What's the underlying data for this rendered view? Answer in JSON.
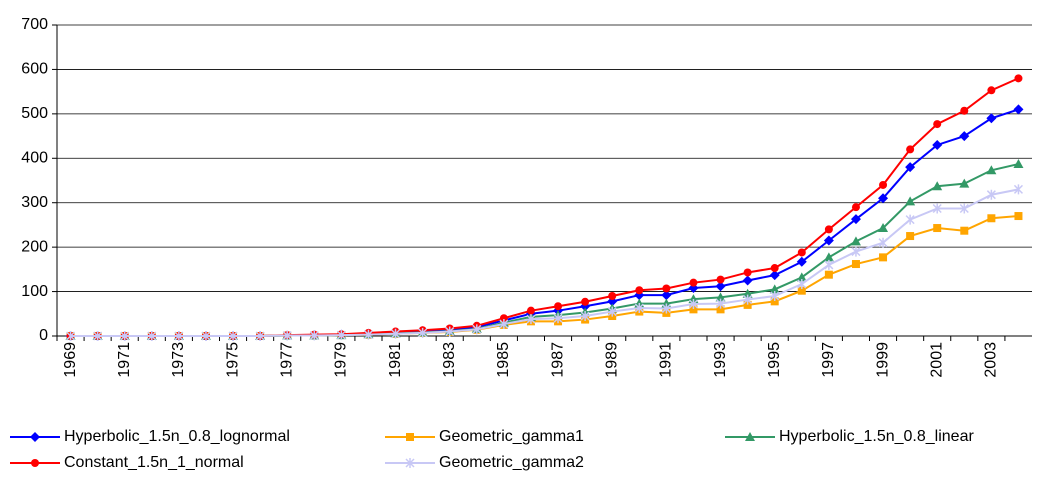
{
  "chart_data": {
    "type": "line",
    "categories": [
      "1969",
      null,
      "1971",
      null,
      "1973",
      null,
      "1975",
      null,
      "1977",
      null,
      "1979",
      null,
      "1981",
      null,
      "1983",
      null,
      "1985",
      null,
      "1987",
      null,
      "1989",
      null,
      "1991",
      null,
      "1993",
      null,
      "1995",
      null,
      "1997",
      null,
      "1999",
      null,
      "2001",
      null,
      "2003",
      null
    ],
    "series": [
      {
        "name": "Hyperbolic_1.5n_0.8_lognormal",
        "color": "#0000ff",
        "marker": "diamond",
        "values": [
          0,
          0,
          0,
          0,
          0,
          0,
          0,
          0,
          1,
          2,
          3,
          5,
          8,
          11,
          14,
          20,
          35,
          50,
          57,
          67,
          78,
          92,
          92,
          108,
          112,
          125,
          137,
          167,
          215,
          263,
          310,
          380,
          430,
          450,
          490,
          510
        ]
      },
      {
        "name": "Geometric_gamma1",
        "color": "#ffa500",
        "marker": "square",
        "values": [
          0,
          0,
          0,
          0,
          0,
          0,
          0,
          0,
          1,
          1,
          2,
          3,
          5,
          7,
          9,
          14,
          25,
          33,
          33,
          37,
          45,
          55,
          52,
          60,
          60,
          70,
          78,
          102,
          138,
          162,
          177,
          225,
          243,
          237,
          265,
          270
        ]
      },
      {
        "name": "Hyperbolic_1.5n_0.8_linear",
        "color": "#339966",
        "marker": "triangle",
        "values": [
          0,
          0,
          0,
          0,
          0,
          0,
          0,
          0,
          1,
          1,
          2,
          4,
          6,
          8,
          11,
          16,
          30,
          43,
          47,
          53,
          62,
          73,
          73,
          83,
          87,
          95,
          105,
          132,
          177,
          213,
          243,
          303,
          337,
          343,
          373,
          387
        ]
      },
      {
        "name": "Constant_1.5n_1_normal",
        "color": "#ff0000",
        "marker": "circle",
        "values": [
          0,
          0,
          0,
          0,
          0,
          0,
          0,
          0,
          2,
          3,
          4,
          7,
          10,
          13,
          17,
          23,
          40,
          57,
          67,
          77,
          90,
          103,
          107,
          120,
          127,
          143,
          153,
          188,
          240,
          290,
          340,
          420,
          477,
          507,
          553,
          580
        ]
      },
      {
        "name": "Geometric_gamma2",
        "color": "#c8c8f5",
        "marker": "asterisk",
        "values": [
          0,
          0,
          0,
          0,
          0,
          0,
          0,
          0,
          1,
          1,
          2,
          3,
          5,
          7,
          10,
          15,
          27,
          38,
          40,
          45,
          55,
          63,
          62,
          72,
          73,
          82,
          90,
          117,
          160,
          190,
          210,
          262,
          287,
          287,
          318,
          330
        ]
      }
    ],
    "ylim": [
      0,
      700
    ],
    "yticks": [
      0,
      100,
      200,
      300,
      400,
      500,
      600,
      700
    ],
    "grid": true
  }
}
